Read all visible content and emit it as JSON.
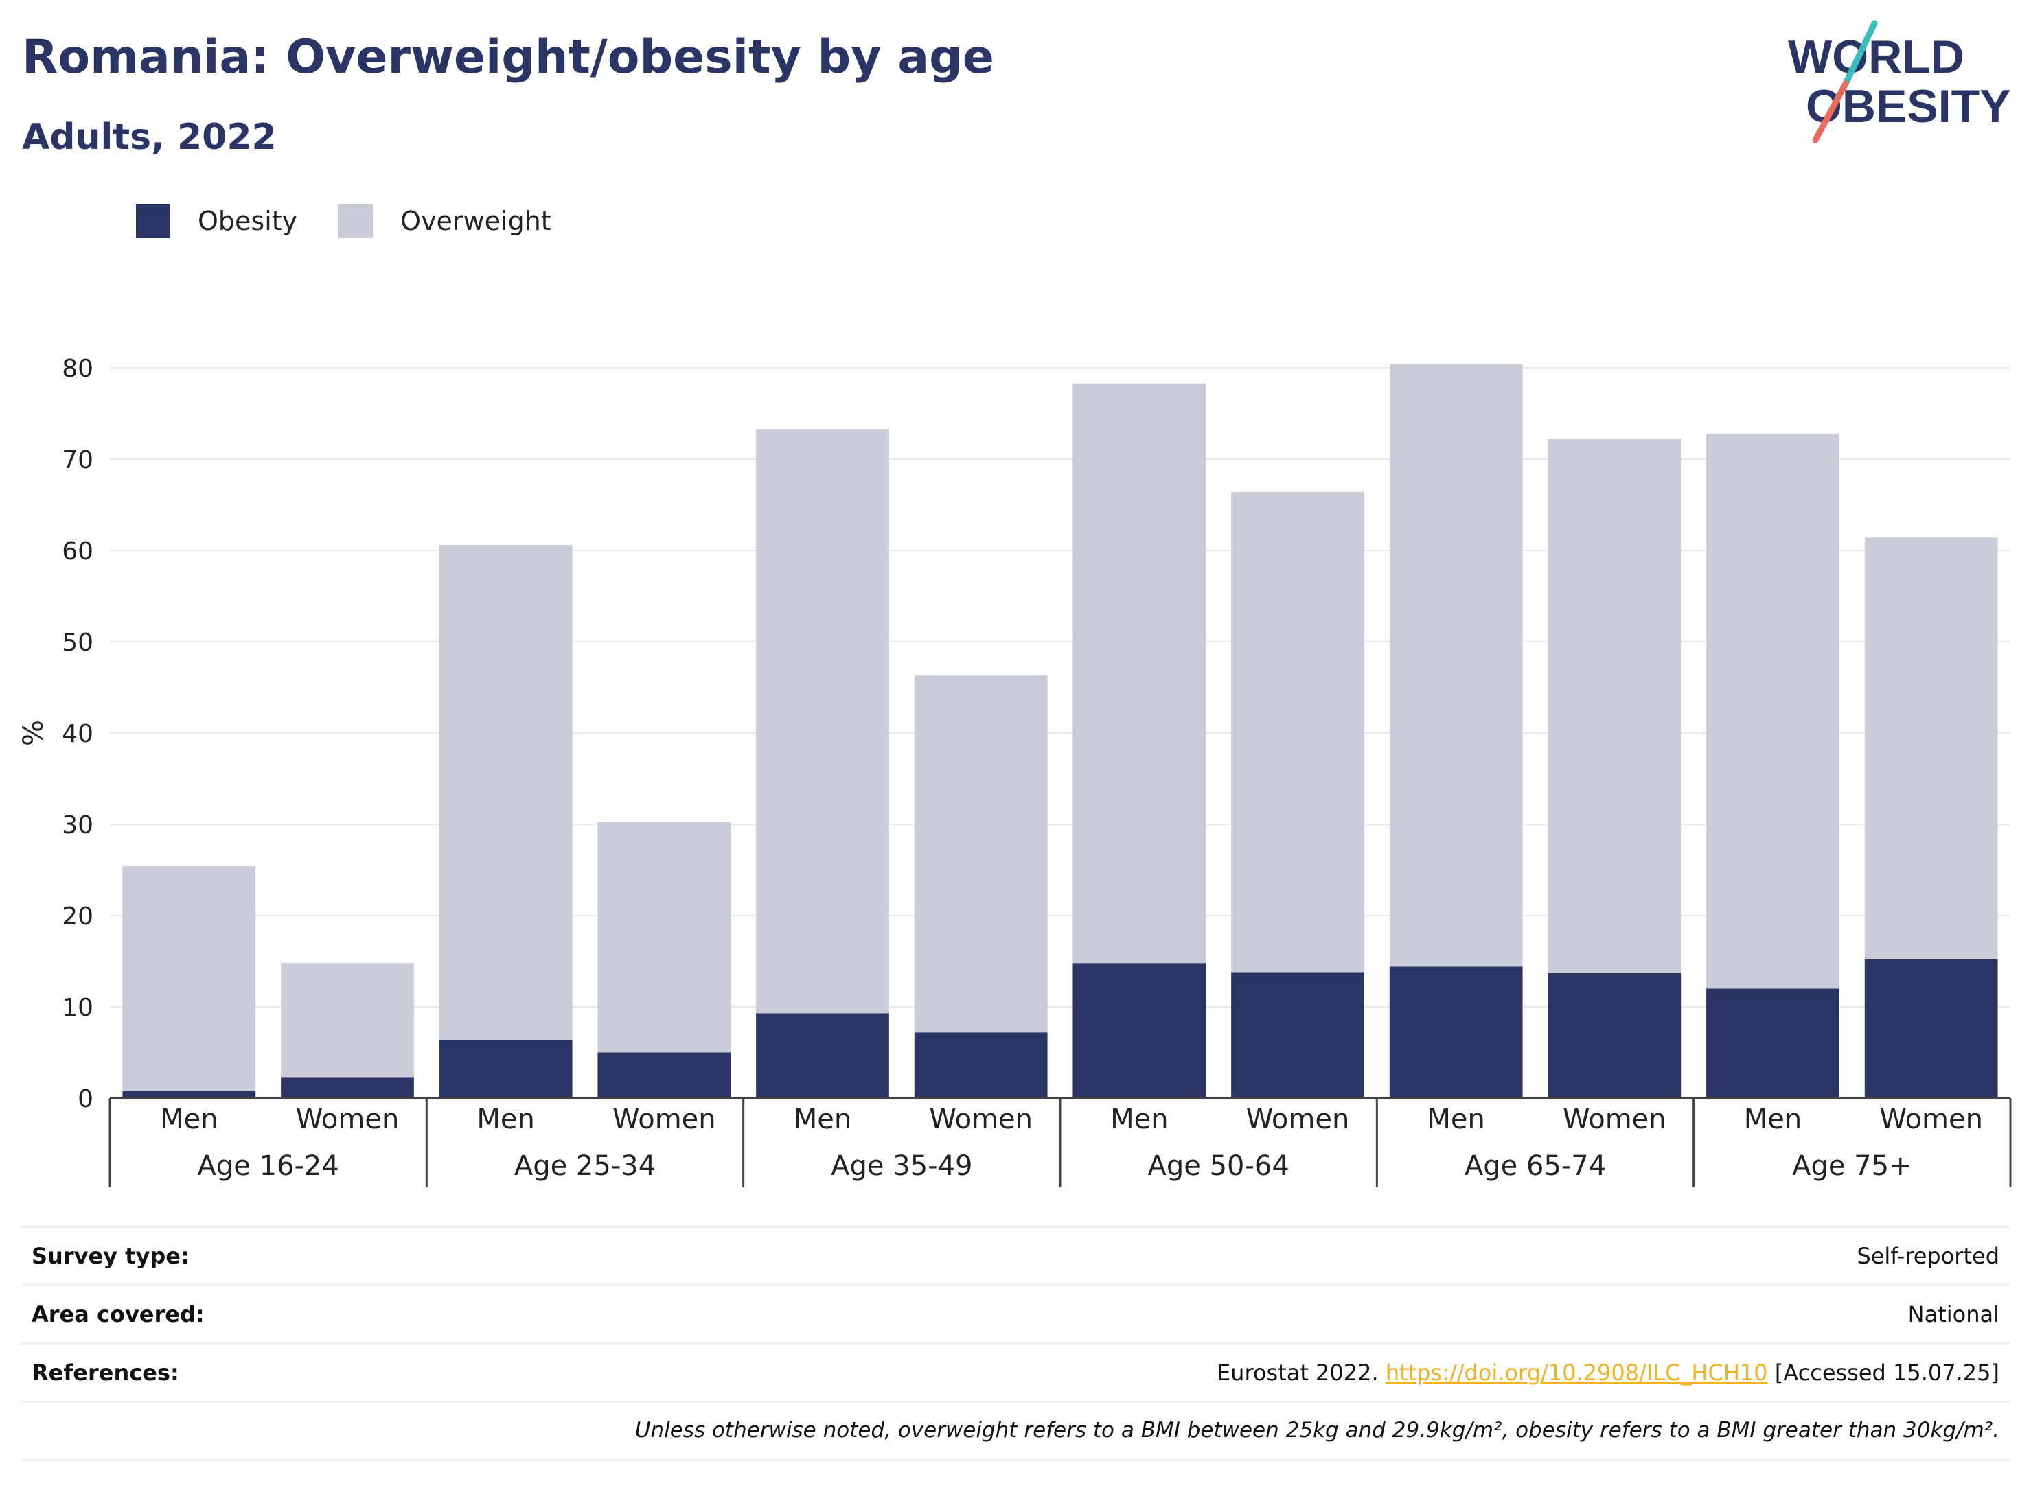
{
  "header": {
    "title": "Romania: Overweight/obesity by age",
    "subtitle": "Adults, 2022"
  },
  "logo": {
    "line1": "WORLD",
    "line2": "OBESITY",
    "colors": {
      "text": "#2b3565",
      "slash_top": "#3bbdc0",
      "slash_bottom": "#ea6a5b"
    }
  },
  "legend": [
    {
      "label": "Obesity",
      "color": "#2b3565"
    },
    {
      "label": "Overweight",
      "color": "#c9cbd7"
    }
  ],
  "chart_data": {
    "type": "bar",
    "stacked": true,
    "ylabel": "%",
    "ylim": [
      0,
      80
    ],
    "yticks": [
      0,
      10,
      20,
      30,
      40,
      50,
      60,
      70,
      80
    ],
    "grid": true,
    "legend_position": "top-left",
    "groups": [
      "Age 16-24",
      "Age 25-34",
      "Age 35-49",
      "Age 50-64",
      "Age 65-74",
      "Age 75+"
    ],
    "categories": [
      "Men",
      "Women",
      "Men",
      "Women",
      "Men",
      "Women",
      "Men",
      "Women",
      "Men",
      "Women",
      "Men",
      "Women"
    ],
    "series": [
      {
        "name": "Obesity",
        "color": "#2b3565",
        "values": [
          0.8,
          2.3,
          6.4,
          5.0,
          9.3,
          7.2,
          14.8,
          13.8,
          14.4,
          13.7,
          12.0,
          15.2
        ]
      },
      {
        "name": "Overweight",
        "color": "#c9cbd7",
        "values": [
          24.6,
          12.5,
          54.2,
          25.3,
          64.0,
          39.1,
          63.5,
          52.6,
          66.0,
          58.5,
          60.8,
          46.2
        ]
      }
    ]
  },
  "info": {
    "survey_type": {
      "label": "Survey type:",
      "value": "Self-reported"
    },
    "area_covered": {
      "label": "Area covered:",
      "value": "National"
    },
    "references": {
      "label": "References:",
      "prefix": "Eurostat 2022. ",
      "link": "https://doi.org/10.2908/ILC_HCH10",
      "suffix": " [Accessed 15.07.25]"
    },
    "note": "Unless otherwise noted, overweight refers to a BMI between 25kg and 29.9kg/m², obesity refers to a BMI greater than 30kg/m²."
  }
}
